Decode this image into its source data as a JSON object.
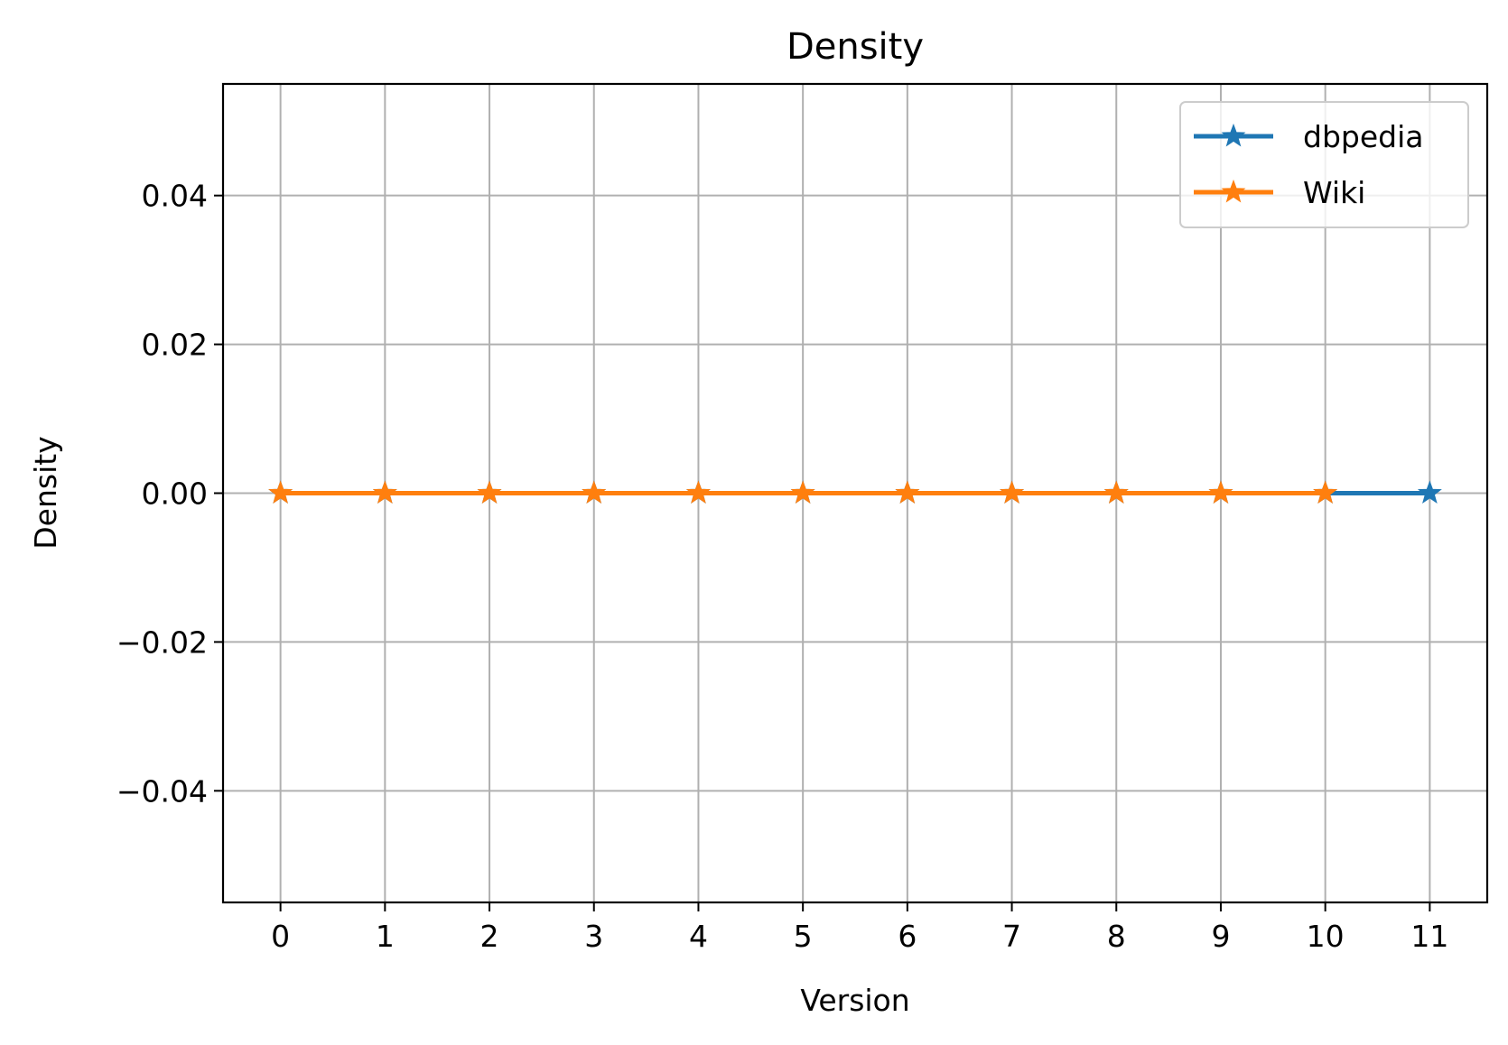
{
  "chart_data": {
    "type": "line",
    "title": "Density",
    "xlabel": "Version",
    "ylabel": "Density",
    "xlim": [
      -0.55,
      11.55
    ],
    "ylim": [
      -0.055,
      0.055
    ],
    "x_ticks": [
      0,
      1,
      2,
      3,
      4,
      5,
      6,
      7,
      8,
      9,
      10,
      11
    ],
    "x_tick_labels": [
      "0",
      "1",
      "2",
      "3",
      "4",
      "5",
      "6",
      "7",
      "8",
      "9",
      "10",
      "11"
    ],
    "y_ticks": [
      -0.04,
      -0.02,
      0.0,
      0.02,
      0.04
    ],
    "y_tick_labels": [
      "−0.04",
      "−0.02",
      "0.00",
      "0.02",
      "0.04"
    ],
    "grid": true,
    "legend_position": "top-right",
    "marker": "star",
    "series": [
      {
        "name": "dbpedia",
        "color": "#1f77b4",
        "x": [
          0,
          1,
          2,
          3,
          4,
          5,
          6,
          7,
          8,
          9,
          10,
          11
        ],
        "y": [
          0,
          0,
          0,
          0,
          0,
          0,
          0,
          0,
          0,
          0,
          0,
          0
        ]
      },
      {
        "name": "Wiki",
        "color": "#ff7f0e",
        "x": [
          0,
          1,
          2,
          3,
          4,
          5,
          6,
          7,
          8,
          9,
          10
        ],
        "y": [
          0,
          0,
          0,
          0,
          0,
          0,
          0,
          0,
          0,
          0,
          0
        ]
      }
    ]
  }
}
